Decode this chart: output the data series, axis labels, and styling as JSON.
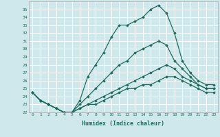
{
  "xlabel": "Humidex (Indice chaleur)",
  "bg_color": "#cfe8eb",
  "grid_color": "#ffffff",
  "line_color": "#1e6b5e",
  "x_values": [
    0,
    1,
    2,
    3,
    4,
    5,
    6,
    7,
    8,
    9,
    10,
    11,
    12,
    13,
    14,
    15,
    16,
    17,
    18,
    19,
    20,
    21,
    22,
    23
  ],
  "line1": [
    24.5,
    23.5,
    23.0,
    22.5,
    22.0,
    22.0,
    23.5,
    26.5,
    28.0,
    29.5,
    31.5,
    33.0,
    33.0,
    33.5,
    34.0,
    35.0,
    35.5,
    34.5,
    32.0,
    28.5,
    27.0,
    26.0,
    25.5,
    25.5
  ],
  "line2": [
    24.5,
    23.5,
    23.0,
    22.5,
    22.0,
    22.0,
    23.0,
    24.0,
    25.0,
    26.0,
    27.0,
    28.0,
    28.5,
    29.5,
    30.0,
    30.5,
    31.0,
    30.5,
    28.5,
    27.5,
    26.5,
    25.5,
    25.0,
    25.0
  ],
  "line3": [
    24.5,
    23.5,
    23.0,
    22.5,
    22.0,
    22.0,
    22.5,
    23.0,
    23.5,
    24.0,
    24.5,
    25.0,
    25.5,
    26.0,
    26.5,
    27.0,
    27.5,
    28.0,
    27.5,
    26.5,
    26.0,
    25.5,
    25.0,
    25.0
  ],
  "line4": [
    24.5,
    23.5,
    23.0,
    22.5,
    22.0,
    22.0,
    22.5,
    23.0,
    23.0,
    23.5,
    24.0,
    24.5,
    25.0,
    25.0,
    25.5,
    25.5,
    26.0,
    26.5,
    26.5,
    26.0,
    25.5,
    25.0,
    24.5,
    24.5
  ],
  "ylim": [
    22,
    36
  ],
  "yticks": [
    22,
    23,
    24,
    25,
    26,
    27,
    28,
    29,
    30,
    31,
    32,
    33,
    34,
    35
  ],
  "marker": "D",
  "markersize": 1.8,
  "linewidth": 0.9
}
